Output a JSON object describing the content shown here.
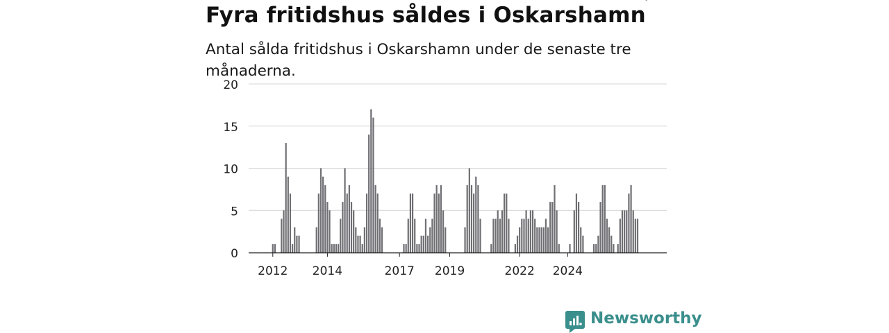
{
  "header": {
    "title": "Fyra fritidshus såldes i Oskarshamn",
    "subtitle": "Antal sålda fritidshus i Oskarshamn under de senaste tre månaderna."
  },
  "brand": {
    "name": "Newsworthy",
    "icon": "newsworthy-logo-icon",
    "color": "#3a8f8c"
  },
  "chart_data": {
    "type": "bar",
    "y_ticks": [
      "0",
      "5",
      "10",
      "15",
      "20"
    ],
    "ylim": [
      0,
      20
    ],
    "x_tick_labels": [
      {
        "label": "2012",
        "index": 2
      },
      {
        "label": "2014",
        "index": 27
      },
      {
        "label": "2017",
        "index": 60
      },
      {
        "label": "2019",
        "index": 83
      },
      {
        "label": "2022",
        "index": 115
      },
      {
        "label": "2024",
        "index": 137
      }
    ],
    "values": [
      0,
      0,
      1,
      1,
      0,
      0,
      4,
      5,
      13,
      9,
      7,
      1,
      3,
      2,
      2,
      0,
      0,
      0,
      0,
      0,
      0,
      0,
      3,
      7,
      10,
      9,
      8,
      6,
      5,
      1,
      1,
      1,
      1,
      4,
      6,
      10,
      7,
      8,
      6,
      5,
      3,
      2,
      2,
      1,
      3,
      7,
      14,
      17,
      16,
      8,
      7,
      4,
      3,
      0,
      0,
      0,
      0,
      0,
      0,
      0,
      0,
      0,
      1,
      1,
      4,
      7,
      7,
      4,
      1,
      1,
      2,
      2,
      4,
      2,
      3,
      4,
      7,
      8,
      7,
      8,
      5,
      3,
      0,
      0,
      0,
      0,
      0,
      0,
      0,
      0,
      3,
      8,
      10,
      8,
      7,
      9,
      8,
      4,
      0,
      0,
      0,
      0,
      1,
      4,
      4,
      5,
      4,
      5,
      7,
      7,
      4,
      0,
      0,
      1,
      2,
      3,
      4,
      4,
      5,
      4,
      5,
      5,
      4,
      3,
      3,
      3,
      3,
      4,
      3,
      6,
      6,
      8,
      5,
      1,
      0,
      0,
      0,
      0,
      1,
      0,
      5,
      7,
      6,
      3,
      2,
      0,
      0,
      0,
      0,
      1,
      1,
      2,
      6,
      8,
      8,
      4,
      3,
      2,
      1,
      0,
      1,
      4,
      5,
      5,
      5,
      7,
      8,
      5,
      4,
      4
    ],
    "highlight_index": 173,
    "highlight_label": "4",
    "bar_color": "#6e6e73",
    "highlight_color": "#1a9b8e",
    "grid": true
  }
}
